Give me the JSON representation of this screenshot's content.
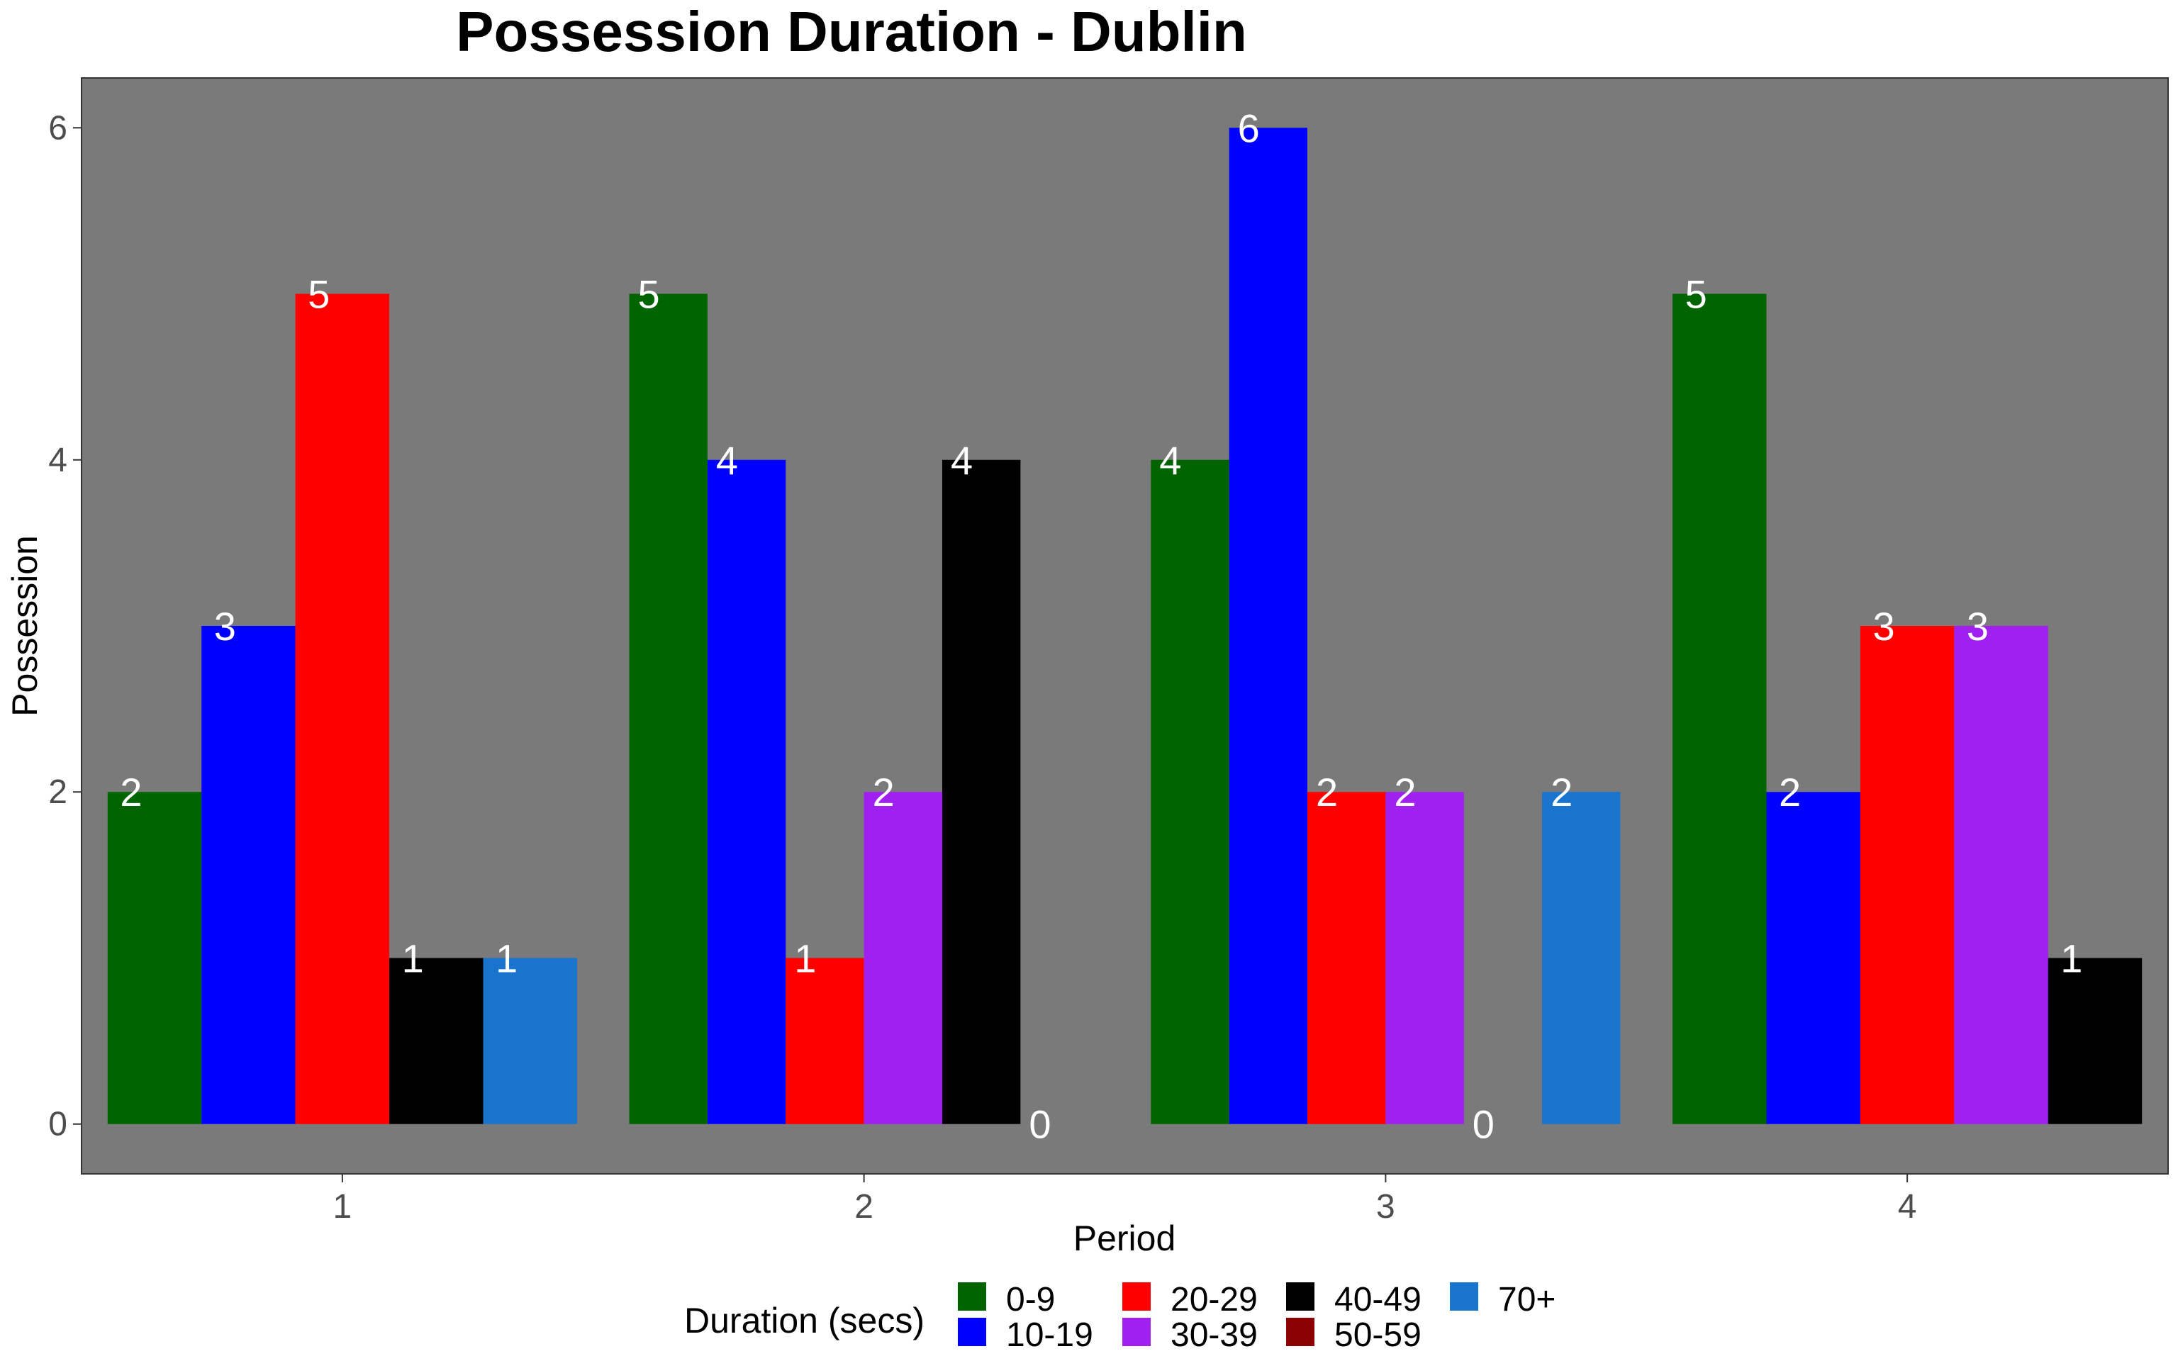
{
  "chart_data": {
    "type": "bar",
    "title": "Possession Duration - Dublin",
    "xlabel": "Period",
    "ylabel": "Possession",
    "ylim": [
      -0.3,
      6.3
    ],
    "yticks": [
      0,
      2,
      4,
      6
    ],
    "categories": [
      "1",
      "2",
      "3",
      "4"
    ],
    "legend_title": "Duration (secs)",
    "legend_position": "bottom",
    "panel_background": "#7a7a7a",
    "grid": false,
    "series": [
      {
        "name": "0-9",
        "color": "#006400"
      },
      {
        "name": "10-19",
        "color": "#0000ff"
      },
      {
        "name": "20-29",
        "color": "#ff0000"
      },
      {
        "name": "30-39",
        "color": "#a020f0"
      },
      {
        "name": "40-49",
        "color": "#000000"
      },
      {
        "name": "50-59",
        "color": "#8b0000"
      },
      {
        "name": "70+",
        "color": "#1874cd"
      }
    ],
    "bars": [
      [
        {
          "series": "0-9",
          "value": 2
        },
        {
          "series": "10-19",
          "value": 3
        },
        {
          "series": "20-29",
          "value": 5
        },
        {
          "series": "40-49",
          "value": 1
        },
        {
          "series": "70+",
          "value": 1
        }
      ],
      [
        {
          "series": "0-9",
          "value": 5
        },
        {
          "series": "10-19",
          "value": 4
        },
        {
          "series": "20-29",
          "value": 1
        },
        {
          "series": "30-39",
          "value": 2
        },
        {
          "series": "40-49",
          "value": 4
        },
        {
          "series": "50-59",
          "value": 0
        }
      ],
      [
        {
          "series": "0-9",
          "value": 4
        },
        {
          "series": "10-19",
          "value": 6
        },
        {
          "series": "20-29",
          "value": 2
        },
        {
          "series": "30-39",
          "value": 2
        },
        {
          "series": "50-59",
          "value": 0
        },
        {
          "series": "70+",
          "value": 2
        }
      ],
      [
        {
          "series": "0-9",
          "value": 5
        },
        {
          "series": "10-19",
          "value": 2
        },
        {
          "series": "20-29",
          "value": 3
        },
        {
          "series": "30-39",
          "value": 3
        },
        {
          "series": "40-49",
          "value": 1
        }
      ]
    ]
  }
}
